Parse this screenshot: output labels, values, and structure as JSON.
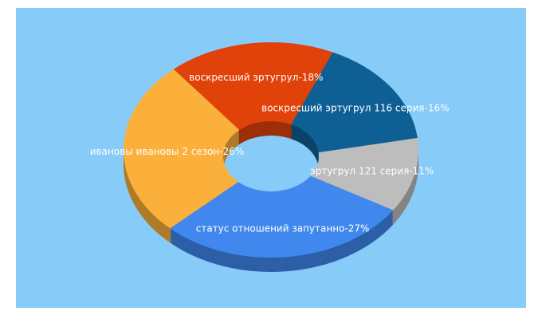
{
  "chart_data": {
    "type": "donut3d",
    "labels": [
      "статус отношений запутанно-27%",
      "ивановы ивановы 2 сезон-26%",
      "воскресший эртугрул-18%",
      "воскресший эртугрул 116 серия-16%",
      "эртугрул 121 серия-11%"
    ],
    "values": [
      27,
      26,
      18,
      16,
      11
    ],
    "colors": [
      "#4088ee",
      "#fbb03b",
      "#e0420a",
      "#0e6094",
      "#bdbdbd"
    ],
    "background": "#87cbf9"
  }
}
